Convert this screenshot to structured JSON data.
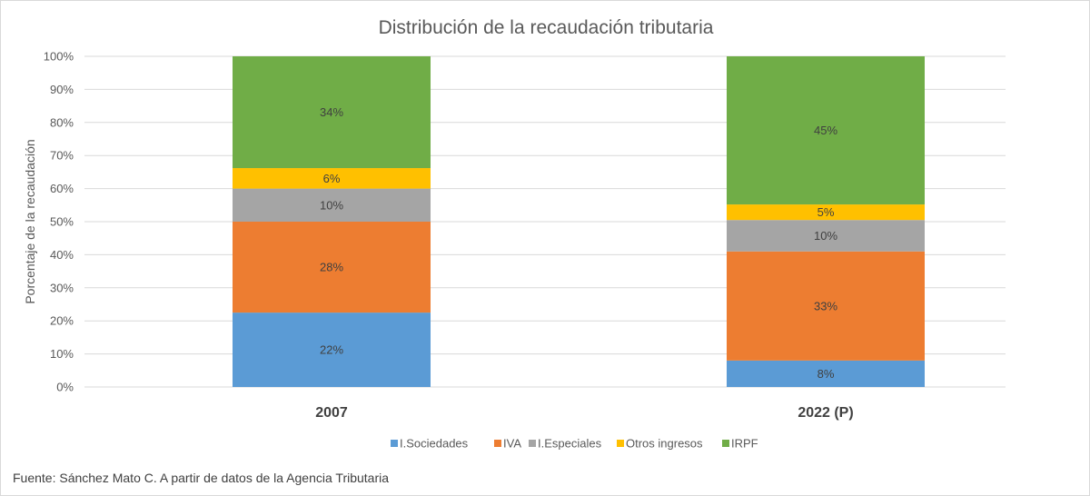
{
  "chart_data": {
    "type": "bar",
    "stacked": true,
    "title": "Distribución de la recaudación tributaria",
    "ylabel": "Porcentaje de la recaudación",
    "xlabel": "",
    "categories": [
      "2007",
      "2022 (P)"
    ],
    "ylim": [
      0,
      100
    ],
    "yticks": [
      "0%",
      "10%",
      "20%",
      "30%",
      "40%",
      "50%",
      "60%",
      "70%",
      "80%",
      "90%",
      "100%"
    ],
    "series": [
      {
        "name": "I.Sociedades",
        "color": "#5B9BD5",
        "values": [
          22.5,
          8.0
        ],
        "labels": [
          "22%",
          "8%"
        ]
      },
      {
        "name": "IVA",
        "color": "#ED7D31",
        "values": [
          27.5,
          33.0
        ],
        "labels": [
          "28%",
          "33%"
        ]
      },
      {
        "name": "I.Especiales",
        "color": "#A5A5A5",
        "values": [
          10.0,
          9.5
        ],
        "labels": [
          "10%",
          "10%"
        ]
      },
      {
        "name": "Otros ingresos",
        "color": "#FFC000",
        "values": [
          6.2,
          4.7
        ],
        "labels": [
          "6%",
          "5%"
        ]
      },
      {
        "name": "IRPF",
        "color": "#70AD47",
        "values": [
          33.8,
          44.8
        ],
        "labels": [
          "34%",
          "45%"
        ]
      }
    ],
    "grid": true,
    "legend_position": "bottom",
    "source": "Fuente: Sánchez Mato C.  A partir de datos de la Agencia Tributaria"
  }
}
